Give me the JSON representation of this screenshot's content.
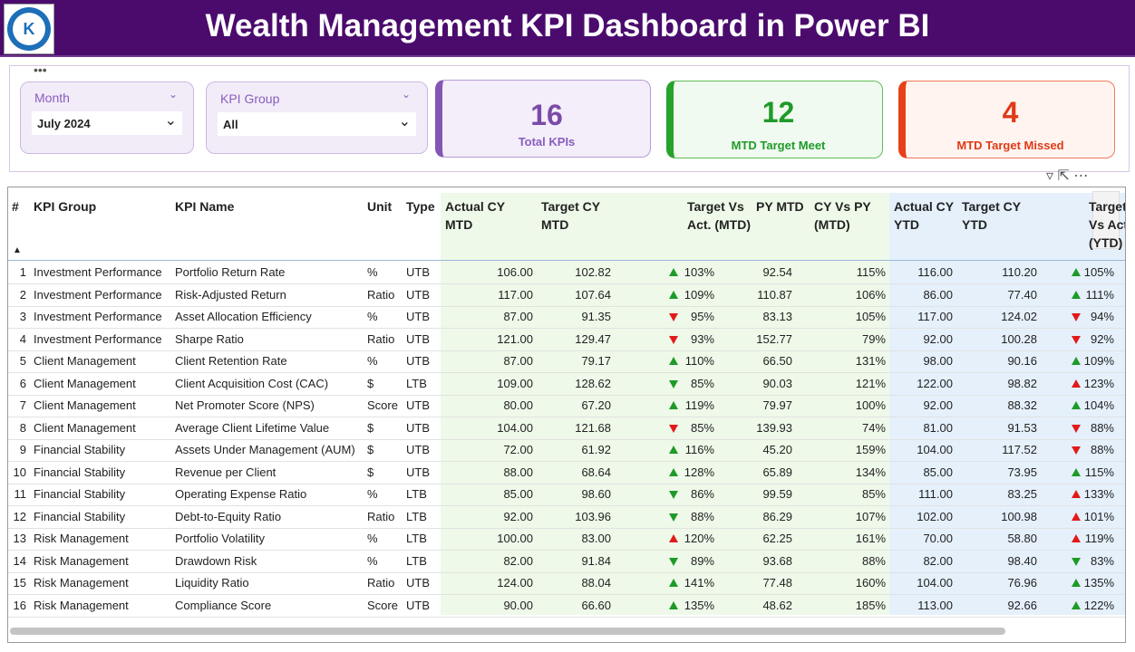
{
  "header": {
    "title": "Wealth Management KPI Dashboard in Power BI"
  },
  "slicers": [
    {
      "label": "Month",
      "value": "July 2024"
    },
    {
      "label": "KPI Group",
      "value": "All"
    }
  ],
  "cards": [
    {
      "value": "16",
      "label": "Total KPIs"
    },
    {
      "value": "12",
      "label": "MTD Target Meet"
    },
    {
      "value": "4",
      "label": "MTD Target Missed"
    }
  ],
  "table": {
    "columns": [
      "#",
      "KPI Group",
      "KPI Name",
      "Unit",
      "Type",
      "Actual CY MTD",
      "Target CY MTD",
      "Target Vs Act. (MTD)",
      "PY MTD",
      "CY Vs PY (MTD)",
      "Actual CY YTD",
      "Target CY YTD",
      "Target Vs Act. (YTD)"
    ],
    "rows": [
      [
        "1",
        "Investment Performance",
        "Portfolio Return Rate",
        "%",
        "UTB",
        "106.00",
        "102.82",
        "103%",
        "92.54",
        "115%",
        "116.00",
        "110.20",
        "105%"
      ],
      [
        "2",
        "Investment Performance",
        "Risk-Adjusted Return",
        "Ratio",
        "UTB",
        "117.00",
        "107.64",
        "109%",
        "110.87",
        "106%",
        "86.00",
        "77.40",
        "111%"
      ],
      [
        "3",
        "Investment Performance",
        "Asset Allocation Efficiency",
        "%",
        "UTB",
        "87.00",
        "91.35",
        "95%",
        "83.13",
        "105%",
        "117.00",
        "124.02",
        "94%"
      ],
      [
        "4",
        "Investment Performance",
        "Sharpe Ratio",
        "Ratio",
        "UTB",
        "121.00",
        "129.47",
        "93%",
        "152.77",
        "79%",
        "92.00",
        "100.28",
        "92%"
      ],
      [
        "5",
        "Client Management",
        "Client Retention Rate",
        "%",
        "UTB",
        "87.00",
        "79.17",
        "110%",
        "66.50",
        "131%",
        "98.00",
        "90.16",
        "109%"
      ],
      [
        "6",
        "Client Management",
        "Client Acquisition Cost (CAC)",
        "$",
        "LTB",
        "109.00",
        "128.62",
        "85%",
        "90.03",
        "121%",
        "122.00",
        "98.82",
        "123%"
      ],
      [
        "7",
        "Client Management",
        "Net Promoter Score (NPS)",
        "Score",
        "UTB",
        "80.00",
        "67.20",
        "119%",
        "79.97",
        "100%",
        "92.00",
        "88.32",
        "104%"
      ],
      [
        "8",
        "Client Management",
        "Average Client Lifetime Value",
        "$",
        "UTB",
        "104.00",
        "121.68",
        "85%",
        "139.93",
        "74%",
        "81.00",
        "91.53",
        "88%"
      ],
      [
        "9",
        "Financial Stability",
        "Assets Under Management (AUM)",
        "$",
        "UTB",
        "72.00",
        "61.92",
        "116%",
        "45.20",
        "159%",
        "104.00",
        "117.52",
        "88%"
      ],
      [
        "10",
        "Financial Stability",
        "Revenue per Client",
        "$",
        "UTB",
        "88.00",
        "68.64",
        "128%",
        "65.89",
        "134%",
        "85.00",
        "73.95",
        "115%"
      ],
      [
        "11",
        "Financial Stability",
        "Operating Expense Ratio",
        "%",
        "LTB",
        "85.00",
        "98.60",
        "86%",
        "99.59",
        "85%",
        "111.00",
        "83.25",
        "133%"
      ],
      [
        "12",
        "Financial Stability",
        "Debt-to-Equity Ratio",
        "Ratio",
        "LTB",
        "92.00",
        "103.96",
        "88%",
        "86.29",
        "107%",
        "102.00",
        "100.98",
        "101%"
      ],
      [
        "13",
        "Risk Management",
        "Portfolio Volatility",
        "%",
        "LTB",
        "100.00",
        "83.00",
        "120%",
        "62.25",
        "161%",
        "70.00",
        "58.80",
        "119%"
      ],
      [
        "14",
        "Risk Management",
        "Drawdown Risk",
        "%",
        "LTB",
        "82.00",
        "91.84",
        "89%",
        "93.68",
        "88%",
        "82.00",
        "98.40",
        "83%"
      ],
      [
        "15",
        "Risk Management",
        "Liquidity Ratio",
        "Ratio",
        "UTB",
        "124.00",
        "88.04",
        "141%",
        "77.48",
        "160%",
        "104.00",
        "76.96",
        "135%"
      ],
      [
        "16",
        "Risk Management",
        "Compliance Score",
        "Score",
        "UTB",
        "90.00",
        "66.60",
        "135%",
        "48.62",
        "185%",
        "113.00",
        "92.66",
        "122%"
      ]
    ]
  }
}
